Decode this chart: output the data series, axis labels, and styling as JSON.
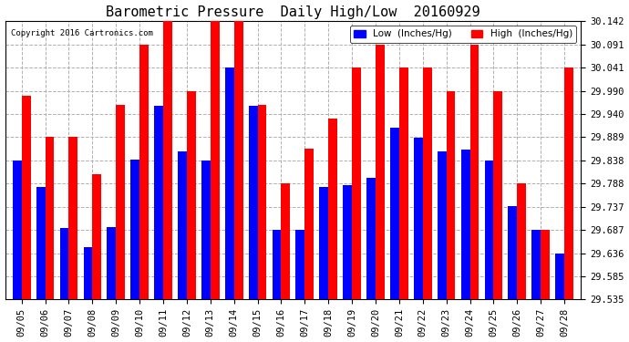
{
  "title": "Barometric Pressure  Daily High/Low  20160929",
  "copyright": "Copyright 2016 Cartronics.com",
  "legend_low": "Low  (Inches/Hg)",
  "legend_high": "High  (Inches/Hg)",
  "dates": [
    "09/05",
    "09/06",
    "09/07",
    "09/08",
    "09/09",
    "09/10",
    "09/11",
    "09/12",
    "09/13",
    "09/14",
    "09/15",
    "09/16",
    "09/17",
    "09/18",
    "09/19",
    "09/20",
    "09/21",
    "09/22",
    "09/23",
    "09/24",
    "09/25",
    "09/26",
    "09/27",
    "09/28"
  ],
  "high_values": [
    29.98,
    29.889,
    29.889,
    29.808,
    29.96,
    30.091,
    30.142,
    29.99,
    30.142,
    30.142,
    29.96,
    29.788,
    29.863,
    29.93,
    30.041,
    30.091,
    30.041,
    30.041,
    29.99,
    30.091,
    29.99,
    29.788,
    29.688,
    30.041
  ],
  "low_values": [
    29.838,
    29.78,
    29.69,
    29.65,
    29.693,
    29.84,
    29.958,
    29.858,
    29.838,
    30.041,
    29.958,
    29.688,
    29.688,
    29.78,
    29.785,
    29.8,
    29.91,
    29.888,
    29.858,
    29.862,
    29.838,
    29.738,
    29.688,
    29.636
  ],
  "ylim_min": 29.535,
  "ylim_max": 30.142,
  "yticks": [
    29.535,
    29.585,
    29.636,
    29.687,
    29.737,
    29.788,
    29.838,
    29.889,
    29.94,
    29.99,
    30.041,
    30.091,
    30.142
  ],
  "bar_width": 0.38,
  "high_color": "#ff0000",
  "low_color": "#0000ff",
  "bg_color": "#ffffff",
  "grid_color": "#b0b0b0",
  "title_fontsize": 11,
  "tick_fontsize": 7.5,
  "legend_fontsize": 7.5
}
